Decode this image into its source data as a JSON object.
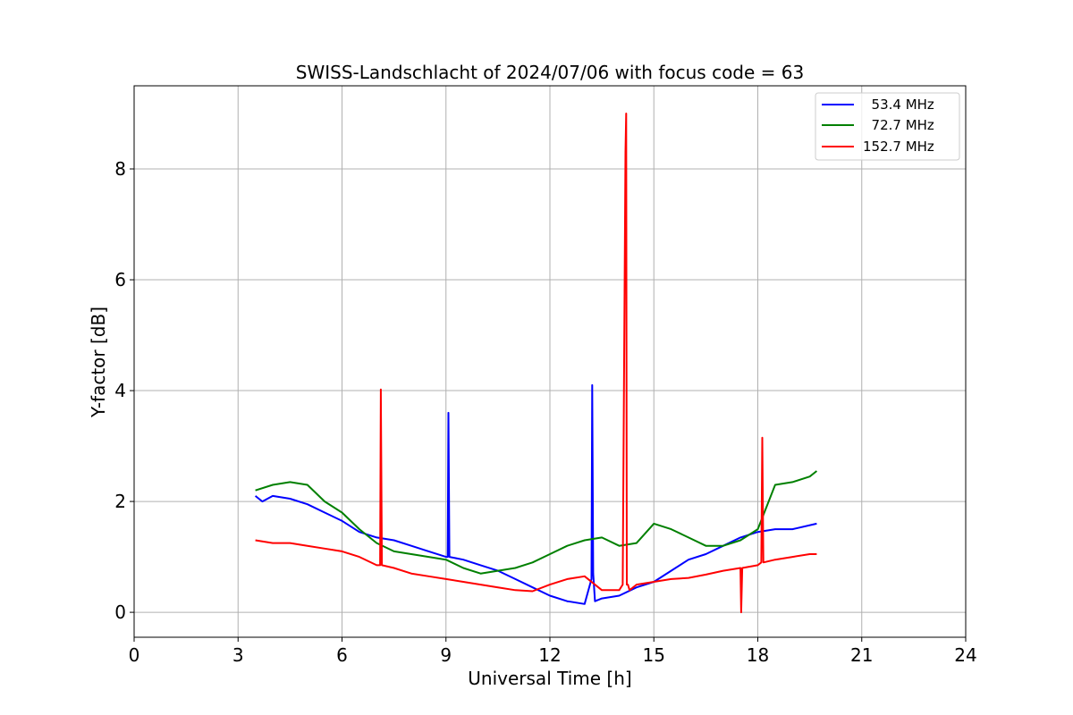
{
  "chart_data": {
    "type": "line",
    "title": "SWISS-Landschlacht of 2024/07/06 with focus code = 63",
    "xlabel": "Universal Time [h]",
    "ylabel": "Y-factor [dB]",
    "xlim": [
      0,
      24
    ],
    "ylim": [
      -0.45,
      9.5
    ],
    "xticks": [
      0,
      3,
      6,
      9,
      12,
      15,
      18,
      21,
      24
    ],
    "yticks": [
      0,
      2,
      4,
      6,
      8
    ],
    "grid": true,
    "legend_position": "top-right",
    "series": [
      {
        "name": "53.4 MHz",
        "legend_label": "  53.4 MHz",
        "color": "#0000ff",
        "x": [
          3.5,
          3.7,
          4.0,
          4.5,
          5.0,
          5.5,
          6.0,
          6.5,
          7.0,
          7.5,
          8.0,
          8.5,
          9.0,
          9.05,
          9.07,
          9.1,
          9.5,
          10.0,
          10.5,
          11.0,
          11.5,
          12.0,
          12.5,
          13.0,
          13.2,
          13.22,
          13.25,
          13.3,
          13.5,
          14.0,
          14.5,
          15.0,
          15.5,
          16.0,
          16.5,
          17.0,
          17.5,
          18.0,
          18.5,
          19.0,
          19.7
        ],
        "y": [
          2.1,
          2.0,
          2.1,
          2.05,
          1.95,
          1.8,
          1.65,
          1.45,
          1.35,
          1.3,
          1.2,
          1.1,
          1.0,
          1.0,
          3.6,
          1.0,
          0.95,
          0.85,
          0.75,
          0.6,
          0.45,
          0.3,
          0.2,
          0.15,
          0.6,
          4.1,
          0.7,
          0.2,
          0.25,
          0.3,
          0.45,
          0.55,
          0.75,
          0.95,
          1.05,
          1.2,
          1.35,
          1.45,
          1.5,
          1.5,
          1.6
        ]
      },
      {
        "name": "72.7 MHz",
        "legend_label": "  72.7 MHz",
        "color": "#008000",
        "x": [
          3.5,
          4.0,
          4.5,
          5.0,
          5.5,
          6.0,
          6.5,
          7.0,
          7.5,
          8.0,
          8.5,
          9.0,
          9.5,
          10.0,
          10.5,
          11.0,
          11.5,
          12.0,
          12.5,
          13.0,
          13.5,
          14.0,
          14.5,
          15.0,
          15.5,
          16.0,
          16.5,
          17.0,
          17.5,
          18.0,
          18.5,
          19.0,
          19.5,
          19.7
        ],
        "y": [
          2.2,
          2.3,
          2.35,
          2.3,
          2.0,
          1.8,
          1.5,
          1.25,
          1.1,
          1.05,
          1.0,
          0.95,
          0.8,
          0.7,
          0.75,
          0.8,
          0.9,
          1.05,
          1.2,
          1.3,
          1.35,
          1.2,
          1.25,
          1.6,
          1.5,
          1.35,
          1.2,
          1.2,
          1.3,
          1.5,
          2.3,
          2.35,
          2.45,
          2.55
        ]
      },
      {
        "name": "152.7 MHz",
        "legend_label": "152.7 MHz",
        "color": "#ff0000",
        "x": [
          3.5,
          4.0,
          4.5,
          5.0,
          5.5,
          6.0,
          6.5,
          7.0,
          7.1,
          7.12,
          7.15,
          7.5,
          8.0,
          8.5,
          9.0,
          9.5,
          10.0,
          10.5,
          11.0,
          11.5,
          12.0,
          12.5,
          13.0,
          13.5,
          14.0,
          14.1,
          14.18,
          14.2,
          14.22,
          14.25,
          14.3,
          14.5,
          15.0,
          15.5,
          16.0,
          16.5,
          17.0,
          17.5,
          17.52,
          17.55,
          18.0,
          18.1,
          18.13,
          18.16,
          18.5,
          19.0,
          19.5,
          19.7
        ],
        "y": [
          1.3,
          1.25,
          1.25,
          1.2,
          1.15,
          1.1,
          1.0,
          0.85,
          0.85,
          4.02,
          0.85,
          0.8,
          0.7,
          0.65,
          0.6,
          0.55,
          0.5,
          0.45,
          0.4,
          0.38,
          0.5,
          0.6,
          0.65,
          0.4,
          0.4,
          0.5,
          8.3,
          9.0,
          0.5,
          0.5,
          0.4,
          0.5,
          0.55,
          0.6,
          0.62,
          0.68,
          0.75,
          0.8,
          0.0,
          0.8,
          0.85,
          0.9,
          3.15,
          0.9,
          0.95,
          1.0,
          1.05,
          1.05
        ]
      }
    ]
  }
}
